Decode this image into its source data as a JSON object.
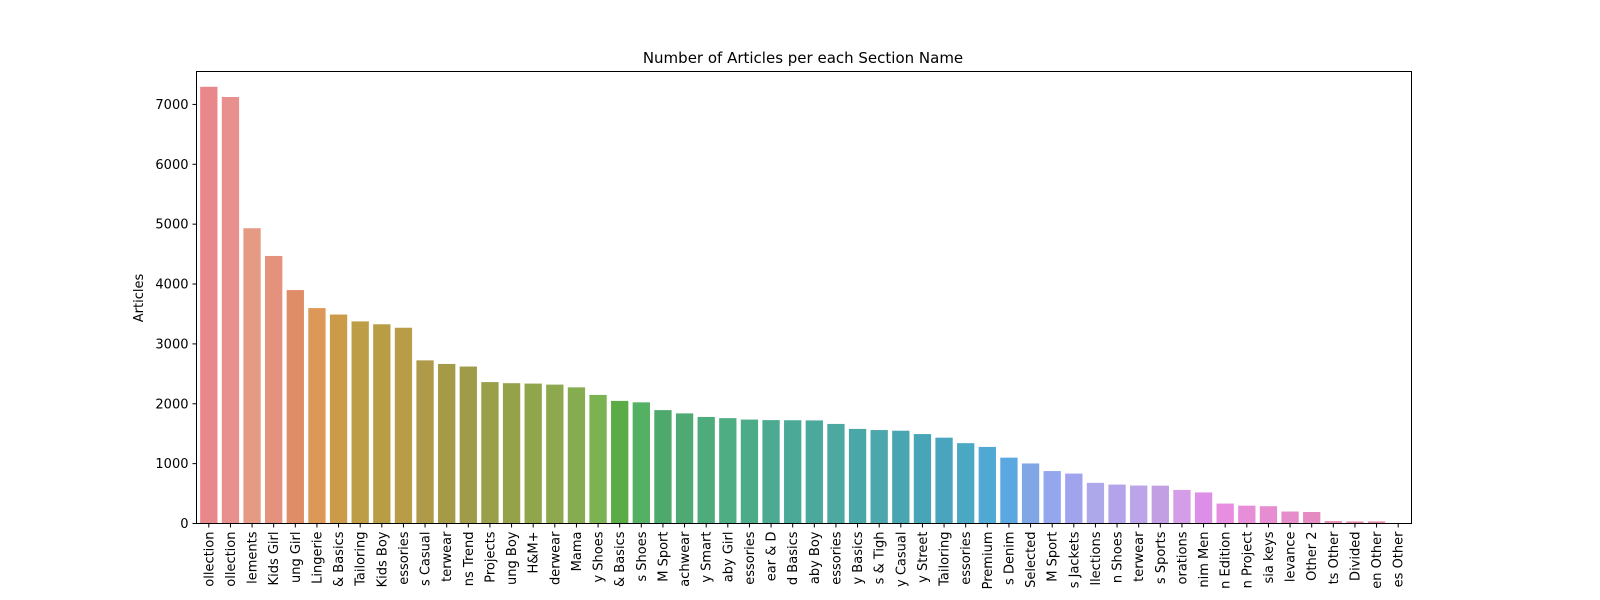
{
  "chart_data": {
    "type": "bar",
    "title": "Number of Articles per each Section Name",
    "xlabel": "",
    "ylabel": "Articles",
    "ylim": [
      0,
      7550
    ],
    "yticks": [
      0,
      1000,
      2000,
      3000,
      4000,
      5000,
      6000,
      7000
    ],
    "ytick_labels": [
      "0",
      "1000",
      "2000",
      "3000",
      "4000",
      "5000",
      "6000",
      "7000"
    ],
    "grid": false,
    "categories": [
      "ollection",
      "ollection",
      "lements",
      "Kids Girl",
      "ung Girl",
      "Lingerie",
      "& Basics",
      "Tailoring",
      "Kids Boy",
      "essories",
      "s Casual",
      "terwear",
      "ns Trend",
      "Projects",
      "ung Boy",
      "H&M+",
      "derwear",
      "Mama",
      "y Shoes",
      "& Basics",
      "s Shoes",
      "M Sport",
      "achwear",
      "y Smart",
      "aby Girl",
      "essories",
      "ear & D",
      "d Basics",
      "aby Boy",
      "essories",
      "y Basics",
      "s & Tigh",
      "y Casual",
      "y Street",
      "Tailoring",
      "essories",
      "Premium",
      "s Denim",
      "Selected",
      "M Sport",
      "s Jackets",
      "llections",
      "n Shoes",
      "terwear",
      "s Sports",
      "orations",
      "nim Men",
      "n Edition",
      "n Project",
      "sia keys",
      "levance",
      "Other 2",
      "ts Other",
      "Divided",
      "en Other",
      "es Other"
    ],
    "values": [
      7295,
      7124,
      4932,
      4469,
      3899,
      3598,
      3490,
      3376,
      3328,
      3270,
      2725,
      2665,
      2622,
      2362,
      2344,
      2337,
      2320,
      2274,
      2148,
      2048,
      2024,
      1894,
      1839,
      1780,
      1760,
      1736,
      1727,
      1725,
      1722,
      1663,
      1580,
      1561,
      1550,
      1494,
      1434,
      1342,
      1279,
      1100,
      1003,
      876,
      834,
      679,
      650,
      634,
      632,
      561,
      519,
      333,
      298,
      289,
      200,
      192,
      40,
      35,
      35,
      0
    ],
    "colors": [
      "#e8888b",
      "#e8908e",
      "#e49a83",
      "#e4917e",
      "#df8d67",
      "#dd9757",
      "#cb9b49",
      "#bd9d45",
      "#b89d45",
      "#b89c48",
      "#ae9a48",
      "#a59b47",
      "#a09b48",
      "#9a9f49",
      "#96a24a",
      "#91a64b",
      "#8da84e",
      "#86ac52",
      "#7bb252",
      "#5bab46",
      "#54b062",
      "#4ea96c",
      "#4eaa72",
      "#4eab7b",
      "#4ead83",
      "#4cac8a",
      "#4baa91",
      "#4baa97",
      "#4aa99c",
      "#4ca8a1",
      "#4aa7a7",
      "#4ba7ab",
      "#49a5b0",
      "#48a5b8",
      "#48a5bd",
      "#4ba8c3",
      "#50a9d2",
      "#5aa8df",
      "#80a6e6",
      "#94a6ed",
      "#a0a4ed",
      "#aca8ea",
      "#b4a3ea",
      "#bba4e8",
      "#c29fe3",
      "#d59de8",
      "#dd8fe7",
      "#e88ee0",
      "#e78ed8",
      "#e68dd1",
      "#e58ccb",
      "#e68bc2",
      "#e588b5",
      "#e78aab",
      "#e488a5",
      "#e6889e"
    ]
  }
}
